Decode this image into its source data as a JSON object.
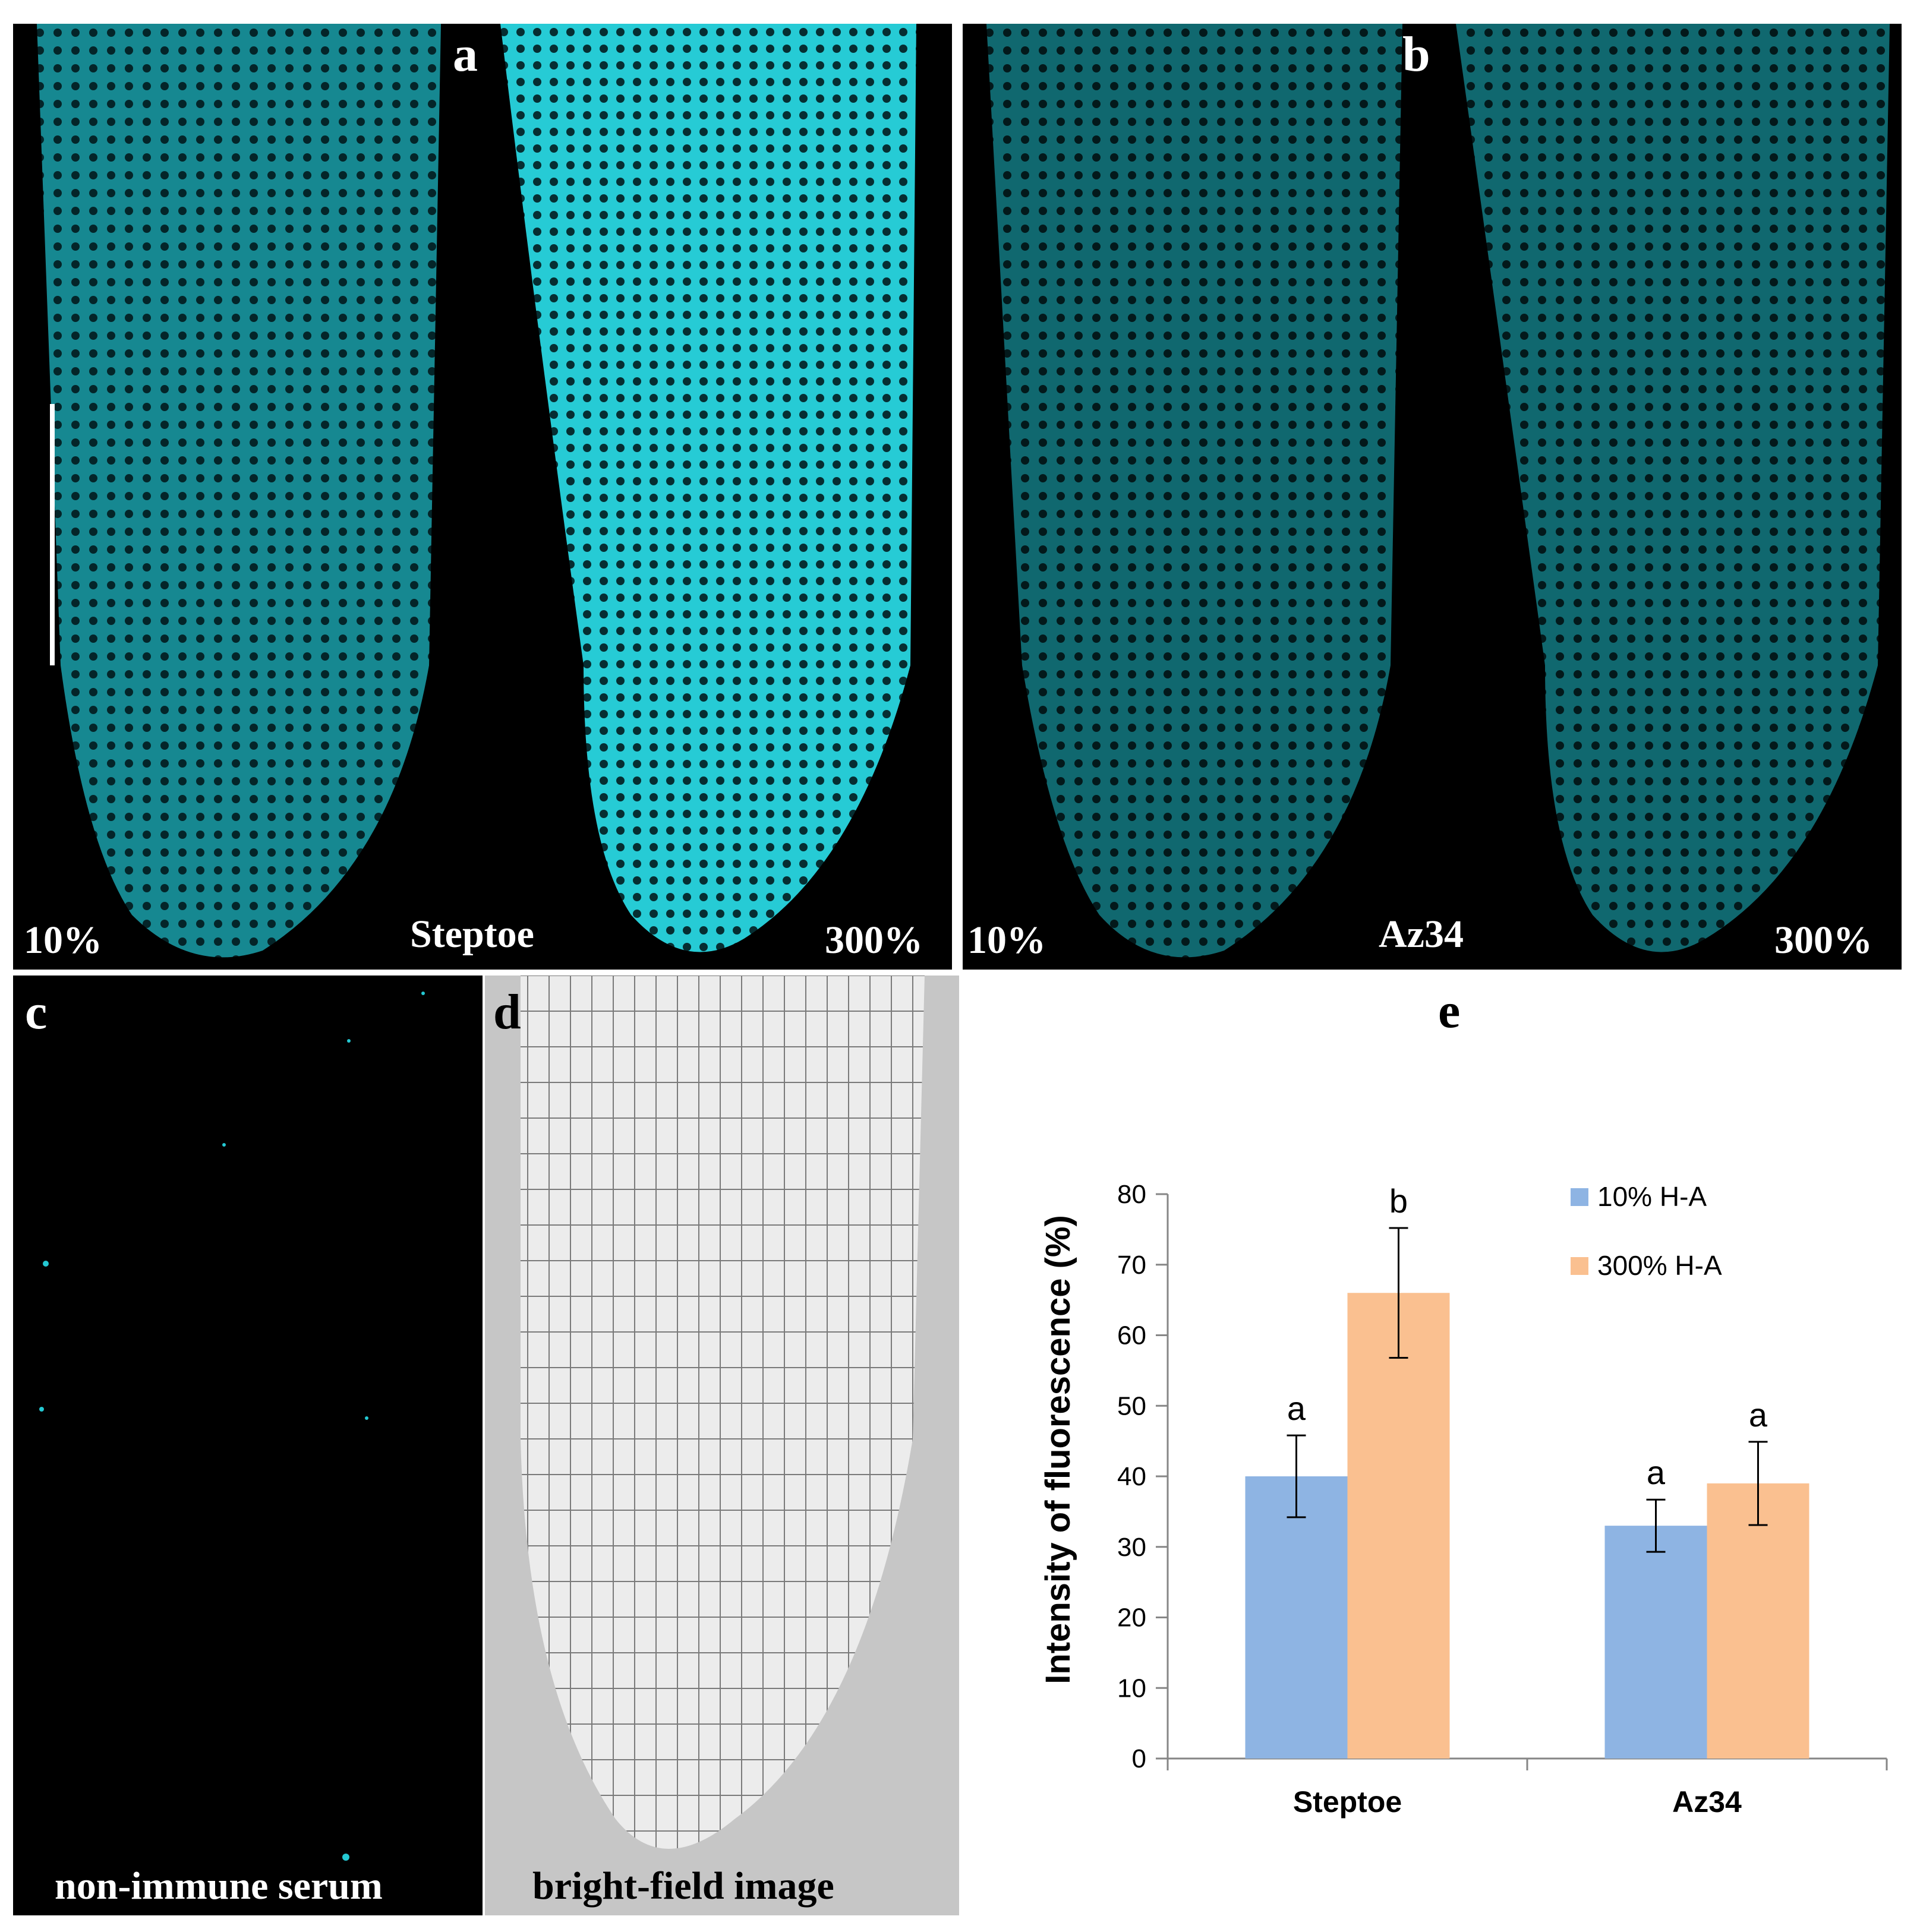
{
  "colors": {
    "fluorescence": "#24c8d2",
    "dark_background": "#000000",
    "brightfield_background": "#c6c6c6",
    "series_10": "#8eb4e3",
    "series_300": "#fac090"
  },
  "panel_a": {
    "letter": "a",
    "left_label": "10%",
    "center_label": "Steptoe",
    "right_label": "300%"
  },
  "panel_b": {
    "letter": "b",
    "left_label": "10%",
    "center_label": "Az34",
    "right_label": "300%"
  },
  "panel_c": {
    "letter": "c",
    "caption": "non-immune serum"
  },
  "panel_d": {
    "letter": "d",
    "caption": "bright-field image"
  },
  "panel_e": {
    "letter": "e"
  },
  "chart_data": {
    "type": "bar",
    "title": "",
    "xlabel": "",
    "ylabel": "Intensity of fluorescence  (%)",
    "ylim": [
      0,
      80
    ],
    "yticks": [
      0,
      10,
      20,
      30,
      40,
      50,
      60,
      70,
      80
    ],
    "grid": false,
    "legend_position": "top-right",
    "categories": [
      "Steptoe",
      "Az34"
    ],
    "series": [
      {
        "name": "10% H-A",
        "values": [
          40,
          33
        ],
        "error": [
          5.8,
          3.7
        ],
        "significance": [
          "a",
          "a"
        ]
      },
      {
        "name": "300% H-A",
        "values": [
          66,
          39
        ],
        "error": [
          9.2,
          5.9
        ],
        "significance": [
          "b",
          "a"
        ]
      }
    ]
  }
}
